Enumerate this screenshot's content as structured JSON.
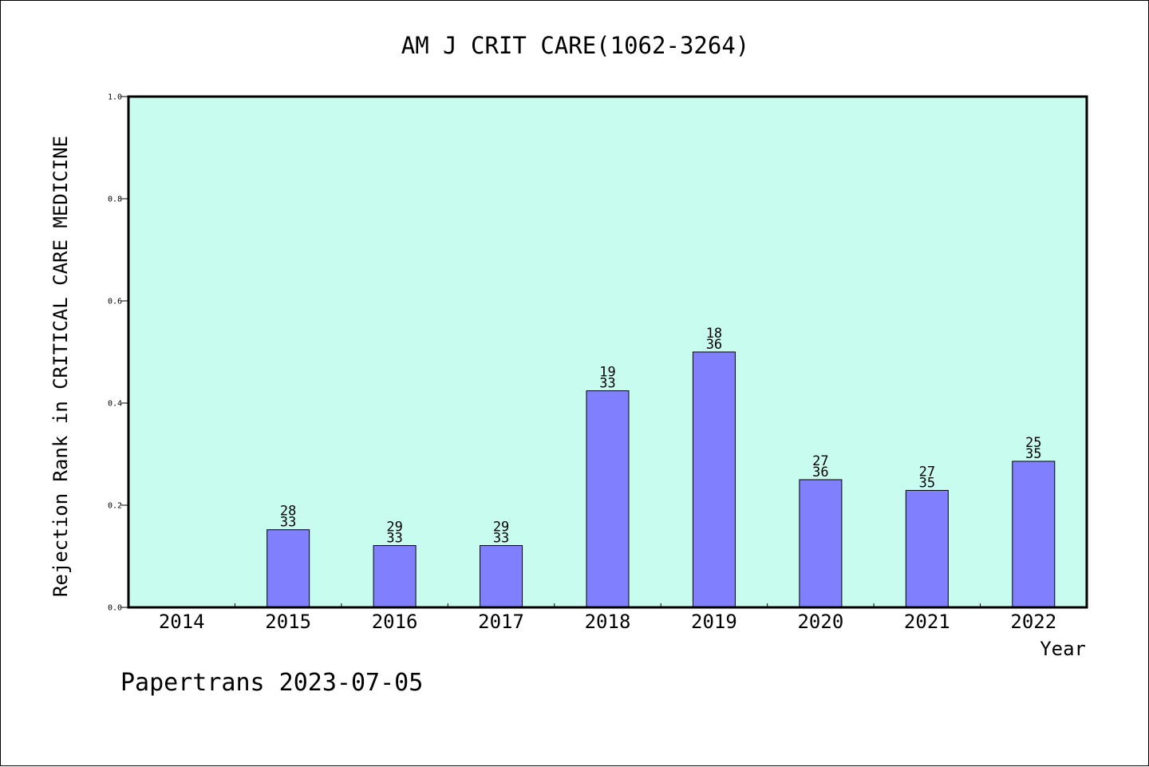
{
  "chart_data": {
    "type": "bar",
    "title": "AM J CRIT CARE(1062-3264)",
    "xlabel": "Year",
    "ylabel": "Rejection Rank in CRITICAL CARE MEDICINE",
    "footer": "Papertrans 2023-07-05",
    "ylim": [
      0.0,
      1.0
    ],
    "yticks": [
      "0.0",
      "0.2",
      "0.4",
      "0.6",
      "0.8",
      "1.0"
    ],
    "categories": [
      "2014",
      "2015",
      "2016",
      "2017",
      "2018",
      "2019",
      "2020",
      "2021",
      "2022"
    ],
    "values": [
      null,
      0.152,
      0.121,
      0.121,
      0.424,
      0.5,
      0.25,
      0.229,
      0.286
    ],
    "rank_labels": [
      null,
      {
        "top": "28",
        "bottom": "33"
      },
      {
        "top": "29",
        "bottom": "33"
      },
      {
        "top": "29",
        "bottom": "33"
      },
      {
        "top": "19",
        "bottom": "33"
      },
      {
        "top": "18",
        "bottom": "36"
      },
      {
        "top": "27",
        "bottom": "36"
      },
      {
        "top": "27",
        "bottom": "35"
      },
      {
        "top": "25",
        "bottom": "35"
      }
    ],
    "grid": false,
    "colors": {
      "plot_background": "#c8fcee",
      "bar_fill": "#8080ff",
      "bar_stroke": "#000000",
      "axis": "#000000"
    }
  }
}
